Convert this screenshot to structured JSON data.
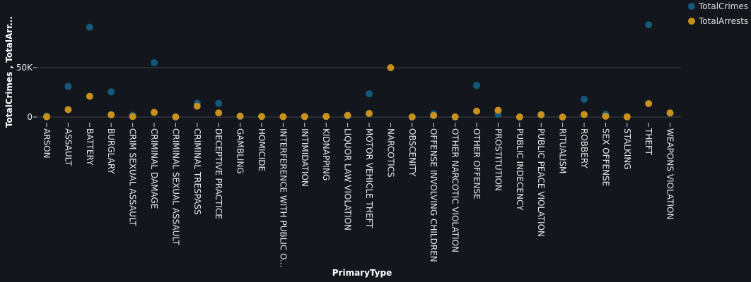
{
  "chart_data": {
    "type": "scatter",
    "xlabel": "PrimaryType",
    "ylabel": "TotalCrimes , TotalArr...",
    "ylim": [
      -10000,
      105000
    ],
    "yticks": [
      {
        "value": 0,
        "label": "0"
      },
      {
        "value": 50000,
        "label": "50K"
      }
    ],
    "grid": true,
    "legend_position": "top-right",
    "categories": [
      "ARSON",
      "ASSAULT",
      "BATTERY",
      "BURGLARY",
      "CRIM SEXUAL ASSAULT",
      "CRIMINAL DAMAGE",
      "CRIMINAL SEXUAL ASSAULT",
      "CRIMINAL TRESPASS",
      "DECEPTIVE PRACTICE",
      "GAMBLING",
      "HOMICIDE",
      "INTERFERENCE WITH PUBLIC O...",
      "INTIMIDATION",
      "KIDNAPPING",
      "LIQUOR LAW VIOLATION",
      "MOTOR VEHICLE THEFT",
      "NARCOTICS",
      "OBSCENITY",
      "OFFENSE INVOLVING CHILDREN",
      "OTHER NARCOTIC VIOLATION",
      "OTHER OFFENSE",
      "PROSTITUTION",
      "PUBLIC INDECENCY",
      "PUBLIC PEACE VIOLATION",
      "RITUALISM",
      "ROBBERY",
      "SEX OFFENSE",
      "STALKING",
      "THEFT",
      "WEAPONS VIOLATION"
    ],
    "series": [
      {
        "name": "TotalCrimes",
        "color": "#12597a",
        "values": [
          1000,
          31000,
          91000,
          25500,
          1800,
          55000,
          300,
          14000,
          13800,
          600,
          600,
          400,
          400,
          700,
          1000,
          23500,
          null,
          100,
          3300,
          100,
          32000,
          2800,
          100,
          2700,
          10,
          18000,
          2900,
          300,
          93500,
          3800
        ]
      },
      {
        "name": "TotalArrests",
        "color": "#c8901c",
        "values": [
          300,
          7500,
          21000,
          2300,
          500,
          4700,
          100,
          11000,
          4200,
          1000,
          500,
          400,
          500,
          600,
          1700,
          3600,
          50000,
          100,
          1500,
          200,
          6000,
          6800,
          100,
          2200,
          10,
          2600,
          800,
          200,
          13600,
          4200
        ]
      }
    ]
  }
}
